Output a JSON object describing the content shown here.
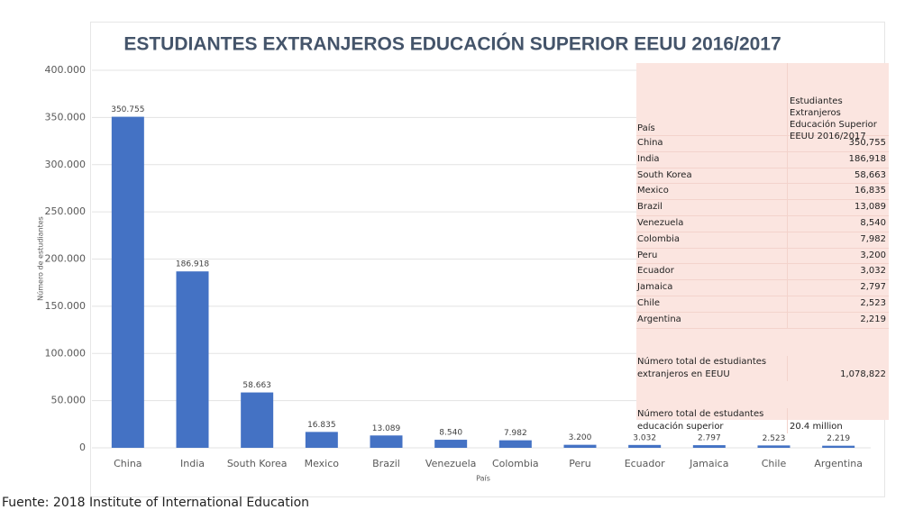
{
  "chart_data": {
    "type": "bar",
    "title": "ESTUDIANTES EXTRANJEROS EDUCACIÓN SUPERIOR EEUU 2016/2017",
    "y_label": "Número de estudiantes",
    "x_label": "País",
    "categories": [
      "China",
      "India",
      "South Korea",
      "Mexico",
      "Brazil",
      "Venezuela",
      "Colombia",
      "Peru",
      "Ecuador",
      "Jamaica",
      "Chile",
      "Argentina"
    ],
    "values": [
      350755,
      186918,
      58663,
      16835,
      13089,
      8540,
      7982,
      3200,
      3032,
      2797,
      2523,
      2219
    ],
    "value_labels": [
      "350.755",
      "186.918",
      "58.663",
      "16.835",
      "13.089",
      "8.540",
      "7.982",
      "3.200",
      "3.032",
      "2.797",
      "2.523",
      "2.219"
    ],
    "color": "#4472c4",
    "ylim": [
      0,
      400000
    ],
    "yticks": [
      0,
      {
        "value": 50000,
        "label": "50.000"
      },
      {
        "value": 100000,
        "label": "100.000"
      },
      {
        "value": 150000,
        "label": "150.000"
      },
      {
        "value": 200000,
        "label": "200.000"
      },
      {
        "value": 250000,
        "label": "250.000"
      },
      {
        "value": 300000,
        "label": "300.000"
      },
      {
        "value": 350000,
        "label": "350.000"
      },
      {
        "value": 400000,
        "label": "400.000"
      }
    ],
    "grid": true
  },
  "table": {
    "header": [
      "País",
      "Estudiantes Extranjeros Educación Superior EEUU 2016/2017"
    ],
    "rows": [
      [
        "China",
        "350,755"
      ],
      [
        "India",
        "186,918"
      ],
      [
        "South Korea",
        "58,663"
      ],
      [
        "Mexico",
        "16,835"
      ],
      [
        "Brazil",
        "13,089"
      ],
      [
        "Venezuela",
        "8,540"
      ],
      [
        "Colombia",
        "7,982"
      ],
      [
        "Peru",
        "3,200"
      ],
      [
        "Ecuador",
        "3,032"
      ],
      [
        "Jamaica",
        "2,797"
      ],
      [
        "Chile",
        "2,523"
      ],
      [
        "Argentina",
        "2,219"
      ]
    ],
    "totals": [
      [
        "Número total de estudiantes extranjeros en EEUU",
        "1,078,822"
      ],
      [
        "Número total de estudantes educación superior",
        "20.4 million"
      ]
    ]
  },
  "source": "Fuente: 2018 Institute of International Education"
}
